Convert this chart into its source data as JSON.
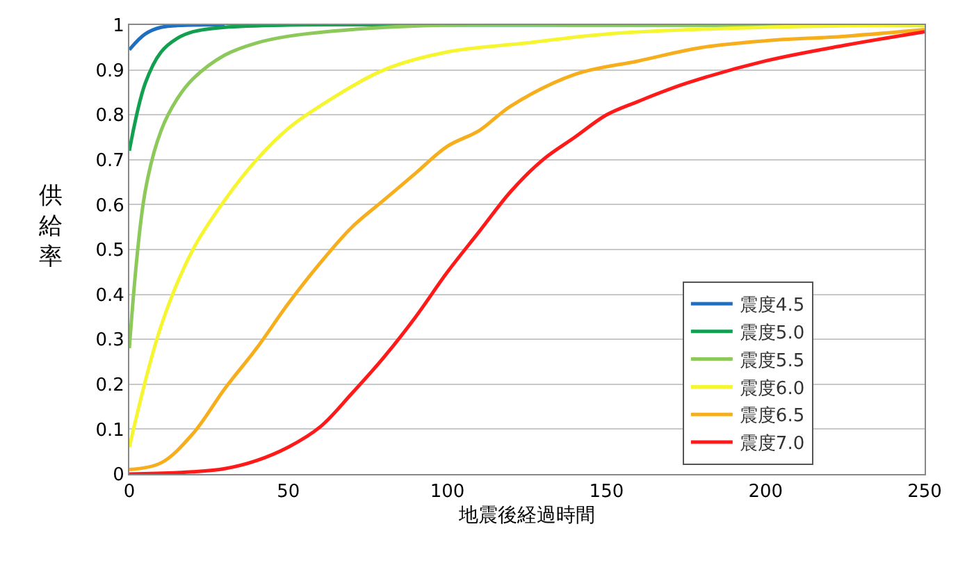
{
  "chart_data": {
    "type": "line",
    "xlabel": "地震後経過時間",
    "ylabel": "供給率",
    "xlim": [
      0,
      250
    ],
    "ylim": [
      0,
      1
    ],
    "xticks": [
      0,
      50,
      100,
      150,
      200,
      250
    ],
    "yticks": [
      0,
      0.1,
      0.2,
      0.3,
      0.4,
      0.5,
      0.6,
      0.7,
      0.8,
      0.9,
      1
    ],
    "grid": "y",
    "legend": "bottom right",
    "marker": "none",
    "line_style": "solid",
    "series": [
      {
        "name": "震度4.5",
        "color": "#1f6fc0",
        "x": [
          0,
          5,
          10,
          20,
          30
        ],
        "values": [
          0.945,
          0.98,
          0.995,
          1,
          1
        ]
      },
      {
        "name": "震度5.0",
        "color": "#12a050",
        "x": [
          0,
          5,
          10,
          15,
          20,
          30,
          50,
          100,
          150,
          200,
          250
        ],
        "values": [
          0.72,
          0.87,
          0.94,
          0.97,
          0.985,
          0.995,
          1,
          1,
          1,
          1,
          1
        ]
      },
      {
        "name": "震度5.5",
        "color": "#8cc85a",
        "x": [
          0,
          5,
          10,
          15,
          20,
          30,
          40,
          50,
          70,
          100,
          150,
          200,
          250
        ],
        "values": [
          0.28,
          0.63,
          0.765,
          0.835,
          0.88,
          0.933,
          0.96,
          0.975,
          0.99,
          1,
          1,
          1,
          1
        ]
      },
      {
        "name": "震度6.0",
        "color": "#f5f530",
        "x": [
          0,
          10,
          20,
          30,
          40,
          50,
          60,
          80,
          100,
          125,
          150,
          200,
          250
        ],
        "values": [
          0.06,
          0.33,
          0.5,
          0.61,
          0.7,
          0.77,
          0.82,
          0.9,
          0.94,
          0.96,
          0.98,
          0.995,
          1
        ]
      },
      {
        "name": "震度6.5",
        "color": "#f7ae1c",
        "x": [
          0,
          10,
          20,
          30,
          40,
          50,
          60,
          70,
          80,
          90,
          100,
          110,
          120,
          140,
          160,
          180,
          200,
          225,
          250
        ],
        "values": [
          0.01,
          0.025,
          0.09,
          0.19,
          0.28,
          0.38,
          0.47,
          0.55,
          0.61,
          0.67,
          0.73,
          0.765,
          0.82,
          0.89,
          0.92,
          0.95,
          0.965,
          0.975,
          0.99
        ]
      },
      {
        "name": "震度7.0",
        "color": "#ff1a1a",
        "x": [
          0,
          20,
          30,
          40,
          50,
          60,
          70,
          80,
          90,
          100,
          110,
          120,
          130,
          140,
          150,
          160,
          175,
          200,
          225,
          250
        ],
        "values": [
          0,
          0.005,
          0.012,
          0.03,
          0.06,
          0.105,
          0.18,
          0.26,
          0.35,
          0.45,
          0.54,
          0.63,
          0.7,
          0.75,
          0.8,
          0.83,
          0.87,
          0.92,
          0.955,
          0.985
        ]
      }
    ]
  }
}
